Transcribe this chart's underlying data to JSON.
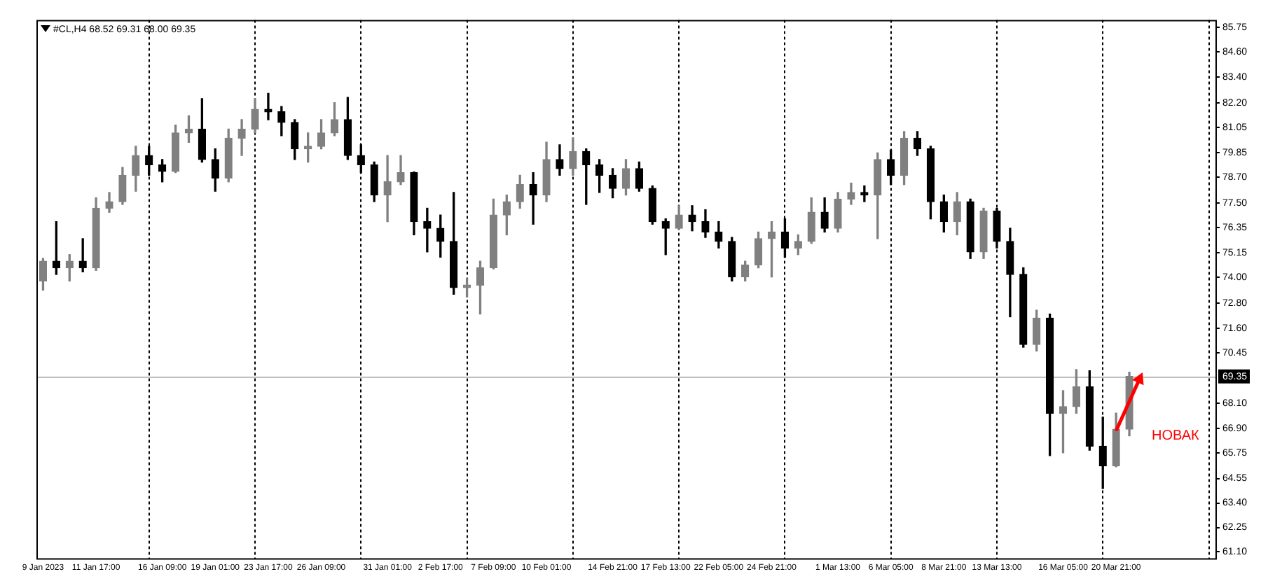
{
  "chart_data": {
    "type": "candlestick",
    "title": "#CL,H4 68.52 69.31 68.00 69.35",
    "categories": [
      "9 Jan 2023",
      null,
      null,
      null,
      "11 Jan 17:00",
      null,
      null,
      null,
      null,
      "16 Jan 09:00",
      null,
      null,
      null,
      "19 Jan 01:00",
      null,
      null,
      null,
      "23 Jan 17:00",
      null,
      null,
      null,
      "26 Jan 09:00",
      null,
      null,
      null,
      null,
      "31 Jan 01:00",
      null,
      null,
      null,
      "2 Feb 17:00",
      null,
      null,
      null,
      "7 Feb 09:00",
      null,
      null,
      null,
      "10 Feb 01:00",
      null,
      null,
      null,
      null,
      "14 Feb 21:00",
      null,
      null,
      null,
      "17 Feb 13:00",
      null,
      null,
      null,
      "22 Feb 05:00",
      null,
      null,
      null,
      "24 Feb 21:00",
      null,
      null,
      null,
      null,
      "1 Mar 13:00",
      null,
      null,
      null,
      "6 Mar 05:00",
      null,
      null,
      null,
      "8 Mar 21:00",
      null,
      null,
      null,
      "13 Mar 13:00",
      null,
      null,
      null,
      null,
      "16 Mar 05:00",
      null,
      null,
      null,
      "20 Mar 21:00",
      null,
      null,
      null,
      null,
      null,
      null,
      null
    ],
    "ohlc": [
      [
        73.83,
        74.89,
        73.4,
        74.76
      ],
      [
        74.76,
        76.62,
        74.14,
        74.45
      ],
      [
        74.45,
        75.07,
        73.83,
        74.76
      ],
      [
        74.76,
        75.82,
        74.26,
        74.45
      ],
      [
        74.45,
        77.74,
        74.33,
        77.25
      ],
      [
        77.25,
        77.99,
        77.06,
        77.56
      ],
      [
        77.56,
        79.17,
        77.43,
        78.8
      ],
      [
        78.8,
        80.16,
        78.05,
        79.73
      ],
      [
        79.73,
        80.16,
        78.8,
        79.29
      ],
      [
        79.29,
        79.54,
        78.49,
        78.98
      ],
      [
        78.98,
        81.16,
        78.92,
        80.79
      ],
      [
        80.79,
        81.59,
        80.35,
        80.97
      ],
      [
        80.97,
        82.4,
        79.42,
        79.54
      ],
      [
        79.54,
        80.04,
        78.05,
        78.67
      ],
      [
        78.67,
        80.97,
        78.49,
        80.54
      ],
      [
        80.54,
        81.41,
        79.73,
        80.97
      ],
      [
        80.97,
        82.4,
        80.79,
        81.9
      ],
      [
        81.9,
        82.65,
        81.41,
        81.78
      ],
      [
        81.78,
        82.03,
        80.66,
        81.28
      ],
      [
        81.28,
        81.41,
        79.54,
        80.04
      ],
      [
        80.04,
        80.79,
        79.42,
        80.16
      ],
      [
        80.16,
        81.41,
        80.04,
        80.79
      ],
      [
        80.79,
        82.21,
        80.66,
        81.41
      ],
      [
        81.41,
        82.46,
        79.54,
        79.73
      ],
      [
        79.73,
        80.23,
        78.92,
        79.29
      ],
      [
        79.29,
        79.42,
        77.56,
        77.87
      ],
      [
        77.87,
        79.73,
        76.62,
        78.49
      ],
      [
        78.49,
        79.73,
        78.36,
        78.92
      ],
      [
        78.92,
        78.95,
        76.0,
        76.62
      ],
      [
        76.62,
        77.25,
        75.2,
        76.31
      ],
      [
        76.31,
        76.93,
        74.95,
        75.69
      ],
      [
        75.69,
        77.99,
        73.21,
        73.52
      ],
      [
        73.52,
        73.95,
        73.08,
        73.64
      ],
      [
        73.64,
        74.76,
        72.28,
        74.45
      ],
      [
        74.45,
        77.68,
        74.4,
        76.93
      ],
      [
        76.93,
        77.87,
        76.0,
        77.56
      ],
      [
        77.56,
        78.8,
        77.25,
        78.36
      ],
      [
        78.36,
        78.92,
        76.5,
        77.87
      ],
      [
        77.87,
        80.35,
        77.56,
        79.54
      ],
      [
        79.54,
        80.23,
        78.8,
        79.11
      ],
      [
        79.11,
        80.54,
        78.8,
        79.92
      ],
      [
        79.92,
        80.04,
        77.43,
        79.29
      ],
      [
        79.29,
        79.54,
        77.99,
        78.8
      ],
      [
        78.8,
        79.11,
        77.74,
        78.18
      ],
      [
        78.18,
        79.54,
        77.87,
        79.11
      ],
      [
        79.11,
        79.42,
        78.05,
        78.18
      ],
      [
        78.18,
        78.3,
        76.5,
        76.62
      ],
      [
        76.62,
        76.75,
        75.07,
        76.31
      ],
      [
        76.31,
        77.37,
        76.25,
        76.93
      ],
      [
        76.93,
        77.37,
        76.19,
        76.62
      ],
      [
        76.62,
        77.18,
        75.88,
        76.13
      ],
      [
        76.13,
        76.62,
        75.38,
        75.69
      ],
      [
        75.69,
        75.88,
        73.83,
        74.02
      ],
      [
        74.02,
        74.76,
        73.83,
        74.58
      ],
      [
        74.58,
        76.13,
        74.45,
        75.82
      ],
      [
        75.82,
        76.62,
        74.02,
        76.13
      ],
      [
        76.13,
        76.75,
        74.95,
        75.38
      ],
      [
        75.38,
        76.0,
        75.07,
        75.69
      ],
      [
        75.69,
        77.74,
        75.6,
        77.06
      ],
      [
        77.06,
        77.74,
        76.13,
        76.31
      ],
      [
        76.31,
        77.99,
        76.13,
        77.68
      ],
      [
        77.68,
        78.43,
        77.43,
        77.99
      ],
      [
        77.99,
        78.3,
        77.56,
        77.87
      ],
      [
        77.87,
        79.85,
        75.82,
        79.54
      ],
      [
        79.54,
        79.98,
        78.36,
        78.8
      ],
      [
        78.8,
        80.85,
        78.36,
        80.54
      ],
      [
        80.54,
        80.85,
        79.73,
        80.04
      ],
      [
        80.04,
        80.16,
        76.75,
        77.56
      ],
      [
        77.56,
        77.87,
        76.13,
        76.62
      ],
      [
        76.62,
        77.99,
        76.0,
        77.56
      ],
      [
        77.56,
        77.68,
        74.89,
        75.2
      ],
      [
        75.2,
        77.25,
        74.89,
        77.12
      ],
      [
        77.12,
        77.25,
        75.38,
        75.69
      ],
      [
        75.69,
        76.31,
        72.15,
        74.14
      ],
      [
        74.14,
        74.45,
        70.72,
        70.85
      ],
      [
        70.85,
        72.46,
        70.54,
        72.09
      ],
      [
        72.09,
        72.28,
        65.63,
        67.62
      ],
      [
        67.62,
        68.68,
        65.76,
        67.93
      ],
      [
        67.93,
        69.67,
        67.62,
        68.86
      ],
      [
        68.86,
        69.61,
        65.88,
        66.07
      ],
      [
        66.07,
        67.43,
        64.08,
        65.14
      ],
      [
        65.14,
        67.62,
        65.1,
        66.87
      ],
      [
        66.87,
        69.55,
        66.56,
        69.35
      ],
      null,
      null,
      null,
      null,
      null,
      null
    ],
    "colors": [
      "#808080",
      "#000000",
      "#808080",
      "#000000",
      "#808080",
      "#808080",
      "#808080",
      "#808080",
      "#000000",
      "#000000",
      "#808080",
      "#808080",
      "#000000",
      "#000000",
      "#808080",
      "#808080",
      "#808080",
      "#000000",
      "#000000",
      "#000000",
      "#808080",
      "#808080",
      "#808080",
      "#000000",
      "#000000",
      "#000000",
      "#808080",
      "#808080",
      "#000000",
      "#000000",
      "#000000",
      "#000000",
      "#808080",
      "#808080",
      "#808080",
      "#808080",
      "#808080",
      "#000000",
      "#808080",
      "#000000",
      "#808080",
      "#000000",
      "#000000",
      "#000000",
      "#808080",
      "#000000",
      "#000000",
      "#000000",
      "#808080",
      "#000000",
      "#000000",
      "#000000",
      "#000000",
      "#808080",
      "#808080",
      "#808080",
      "#000000",
      "#808080",
      "#808080",
      "#000000",
      "#808080",
      "#808080",
      "#000000",
      "#808080",
      "#000000",
      "#808080",
      "#000000",
      "#000000",
      "#000000",
      "#808080",
      "#000000",
      "#808080",
      "#000000",
      "#000000",
      "#000000",
      "#808080",
      "#000000",
      "#808080",
      "#808080",
      "#000000",
      "#000000",
      "#808080",
      "#808080",
      null,
      null,
      null,
      null,
      null,
      null
    ],
    "ylim": [
      60.8,
      86.1
    ],
    "yticks": [
      85.75,
      {
        "value": 84.6,
        "label": "84.60"
      },
      {
        "value": 83.4,
        "label": "83.40"
      },
      {
        "value": 82.2,
        "label": "82.20"
      },
      81.05,
      79.85,
      {
        "value": 78.7,
        "label": "78.70"
      },
      {
        "value": 77.5,
        "label": "77.50"
      },
      76.35,
      75.15,
      {
        "value": 74,
        "label": "74.00"
      },
      {
        "value": 72.8,
        "label": "72.80"
      },
      {
        "value": 71.6,
        "label": "71.60"
      },
      70.45,
      {
        "value": 68.1,
        "label": "68.10"
      },
      {
        "value": 66.9,
        "label": "66.90"
      },
      65.75,
      64.55,
      {
        "value": 63.4,
        "label": "63.40"
      },
      62.25,
      {
        "value": 61.1,
        "label": "61.10"
      }
    ],
    "ref_lines": [
      {
        "axis": "y",
        "value": 69.35,
        "label": "69.35",
        "color": "#c0c0c0"
      }
    ],
    "annotations": [
      "НОВАК"
    ],
    "grid": "x"
  }
}
